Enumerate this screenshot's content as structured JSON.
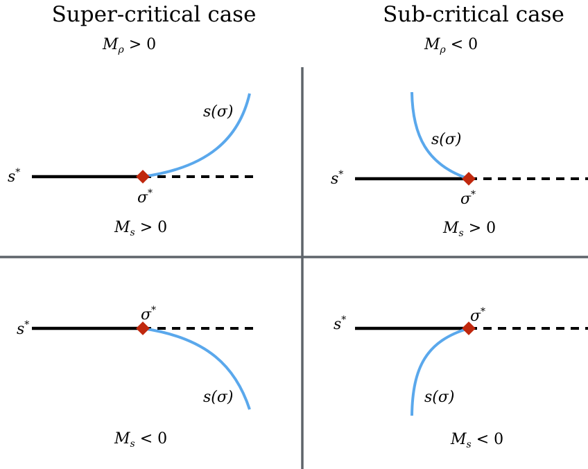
{
  "titles": {
    "left": "Super-critical case",
    "right": "Sub-critical case"
  },
  "m_rho": {
    "left": {
      "base": "M",
      "sub": "ρ",
      "rel": " > 0"
    },
    "right": {
      "base": "M",
      "sub": "ρ",
      "rel": " < 0"
    }
  },
  "panels": {
    "top_left": {
      "s_star": "s",
      "sigma_star": "σ",
      "curve_label": "s(σ)",
      "ms": {
        "base": "M",
        "sub": "s",
        "rel": " > 0"
      }
    },
    "top_right": {
      "s_star": "s",
      "sigma_star": "σ",
      "curve_label": "s(σ)",
      "ms": {
        "base": "M",
        "sub": "s",
        "rel": " > 0"
      }
    },
    "bottom_left": {
      "s_star": "s",
      "sigma_star": "σ",
      "curve_label": "s(σ)",
      "ms": {
        "base": "M",
        "sub": "s",
        "rel": " < 0"
      }
    },
    "bottom_right": {
      "s_star": "s",
      "sigma_star": "σ",
      "curve_label": "s(σ)",
      "ms": {
        "base": "M",
        "sub": "s",
        "rel": " < 0"
      }
    }
  },
  "star": "*",
  "colors": {
    "curve": "#5aa8ec",
    "marker": "#c0280e",
    "divider": "#5e646a",
    "line": "#000000"
  }
}
